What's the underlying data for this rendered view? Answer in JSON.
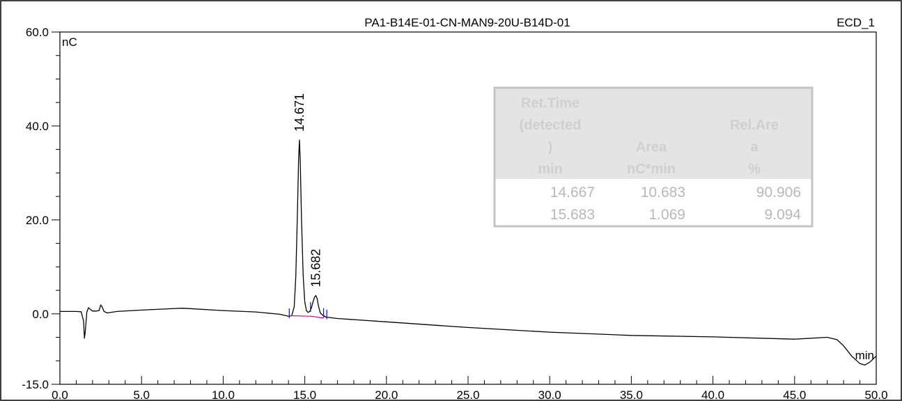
{
  "chart_data": {
    "type": "line",
    "title": "PA1-B14E-01-CN-MAN9-20U-B14D-01",
    "channel": "ECD_1",
    "ylabel": "nC",
    "xlabel": "min",
    "xlim": [
      0,
      50
    ],
    "ylim": [
      -15,
      60
    ],
    "x_ticks": [
      "0.0",
      "5.0",
      "10.0",
      "15.0",
      "20.0",
      "25.0",
      "30.0",
      "35.0",
      "40.0",
      "45.0",
      "50.0"
    ],
    "y_ticks": [
      "60.0",
      "40.0",
      "20.0",
      "0.0",
      "-15.0"
    ],
    "grid": false,
    "series": [
      {
        "color": "#000000",
        "x": [
          0.0,
          1.0,
          1.3,
          1.45,
          1.5,
          1.55,
          1.65,
          1.75,
          1.85,
          2.0,
          2.2,
          2.4,
          2.5,
          2.6,
          2.7,
          2.9,
          3.5,
          5.0,
          7.5,
          10.0,
          12.0,
          13.5,
          14.0,
          14.2,
          14.35,
          14.45,
          14.55,
          14.62,
          14.67,
          14.72,
          14.8,
          14.9,
          15.0,
          15.1,
          15.2,
          15.3,
          15.4,
          15.5,
          15.6,
          15.68,
          15.75,
          15.85,
          15.95,
          16.1,
          16.3,
          17.0,
          20.0,
          25.0,
          30.0,
          35.0,
          40.0,
          45.0,
          47.0,
          47.6,
          48.0,
          48.5,
          49.0,
          49.3,
          49.6,
          50.0
        ],
        "y": [
          0.5,
          0.5,
          0.45,
          -1.5,
          -5.2,
          -4.0,
          0.4,
          1.3,
          1.0,
          0.6,
          0.6,
          0.7,
          1.9,
          1.4,
          0.5,
          0.2,
          0.5,
          0.8,
          1.2,
          0.7,
          0.4,
          -0.1,
          -0.5,
          -0.4,
          1.5,
          8.0,
          22.0,
          33.0,
          37.0,
          33.0,
          20.0,
          8.0,
          2.5,
          0.7,
          0.3,
          0.5,
          1.2,
          2.5,
          3.6,
          3.9,
          3.3,
          1.5,
          0.2,
          -0.3,
          -0.7,
          -1.0,
          -1.7,
          -2.9,
          -3.9,
          -4.6,
          -4.9,
          -5.4,
          -5.0,
          -5.5,
          -6.8,
          -9.0,
          -10.6,
          -10.9,
          -10.3,
          -9.0
        ]
      },
      {
        "color": "#e0007a",
        "x": [
          14.05,
          15.35,
          16.15
        ],
        "y": [
          -0.4,
          -0.5,
          -0.9
        ]
      }
    ],
    "peak_labels": [
      {
        "text": "14.671",
        "x": 14.671,
        "y": 37.0
      },
      {
        "text": "15.682",
        "x": 15.682,
        "y": 3.9
      }
    ],
    "peak_markers": {
      "color": "#2020c0",
      "x": [
        14.05,
        15.35,
        16.15,
        16.35
      ]
    },
    "table": {
      "headers": [
        {
          "lines": [
            "Ret.Time",
            "(detected",
            ")",
            "min"
          ]
        },
        {
          "lines": [
            "Area",
            "nC*min"
          ]
        },
        {
          "lines": [
            "Rel.Are",
            "a",
            "%"
          ]
        }
      ],
      "rows": [
        [
          "14.667",
          "10.683",
          "90.906"
        ],
        [
          "15.683",
          "1.069",
          "9.094"
        ]
      ]
    }
  }
}
